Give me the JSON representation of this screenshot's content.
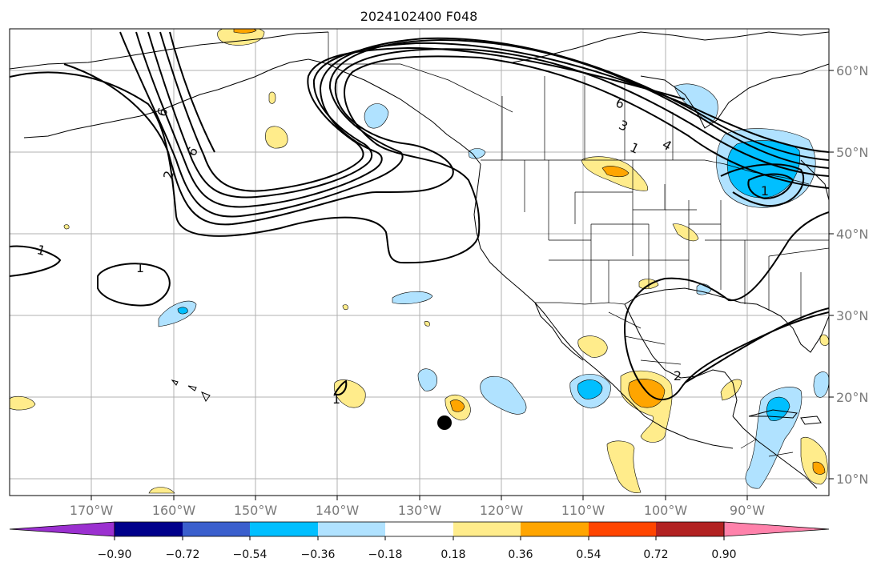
{
  "map": {
    "title": "2024102400 F048",
    "lon_ticks": [
      "170°W",
      "160°W",
      "150°W",
      "140°W",
      "130°W",
      "120°W",
      "110°W",
      "100°W",
      "90°W"
    ],
    "lat_ticks": [
      "60°N",
      "50°N",
      "40°N",
      "30°N",
      "20°N",
      "10°N"
    ],
    "contour_labels": [
      "6",
      "3",
      "1",
      "4",
      "6",
      "2",
      "6",
      "1",
      "1",
      "1",
      "1",
      "2"
    ],
    "colors": {
      "land_outline": "#000000",
      "grid": "#b0b0b0",
      "contour": "#000000",
      "marker": "#000000"
    }
  },
  "colorbar": {
    "tick_labels": [
      "−0.90",
      "−0.72",
      "−0.54",
      "−0.36",
      "−0.18",
      "0.18",
      "0.36",
      "0.54",
      "0.72",
      "0.90"
    ],
    "bins": [
      {
        "color": "#9b30d0"
      },
      {
        "color": "#00008b"
      },
      {
        "color": "#3a5fcd"
      },
      {
        "color": "#00bfff"
      },
      {
        "color": "#b0e2ff"
      },
      {
        "color": "#ffffff"
      },
      {
        "color": "#ffec8b"
      },
      {
        "color": "#ffa500"
      },
      {
        "color": "#ff4500"
      },
      {
        "color": "#b22222"
      },
      {
        "color": "#ff82ab"
      }
    ]
  }
}
